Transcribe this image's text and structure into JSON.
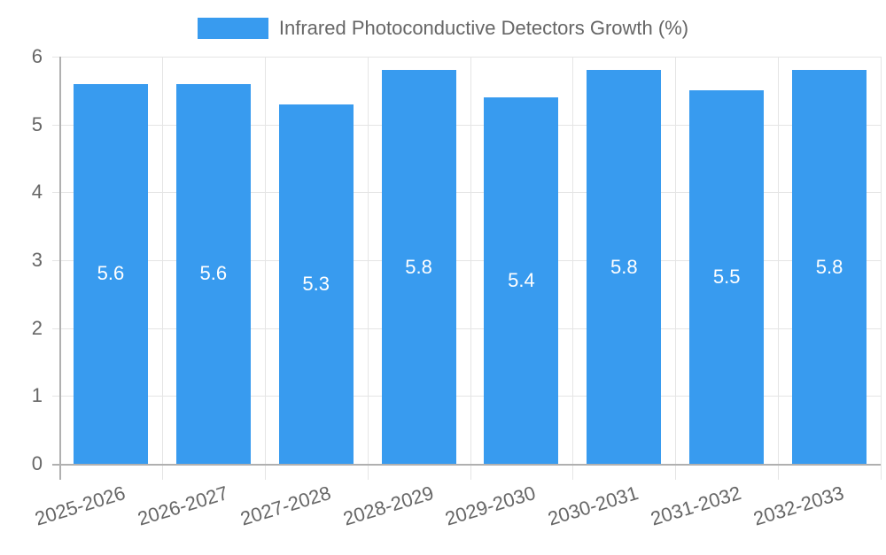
{
  "chart_data": {
    "type": "bar",
    "title": "",
    "categories": [
      "2025-2026",
      "2026-2027",
      "2027-2028",
      "2028-2029",
      "2029-2030",
      "2030-2031",
      "2031-2032",
      "2032-2033"
    ],
    "series": [
      {
        "name": "Infrared Photoconductive Detectors Growth (%)",
        "values": [
          5.6,
          5.6,
          5.3,
          5.8,
          5.4,
          5.8,
          5.5,
          5.8
        ],
        "color": "#389bef"
      }
    ],
    "data_labels": [
      "5.6",
      "5.6",
      "5.3",
      "5.8",
      "5.4",
      "5.8",
      "5.5",
      "5.8"
    ],
    "xlabel": "",
    "ylabel": "",
    "ylim": [
      0,
      6
    ],
    "yticks": [
      0,
      1,
      2,
      3,
      4,
      5,
      6
    ],
    "grid": true,
    "legend_position": "top"
  },
  "legend": {
    "label": "Infrared Photoconductive Detectors Growth (%)",
    "color": "#389bef"
  }
}
